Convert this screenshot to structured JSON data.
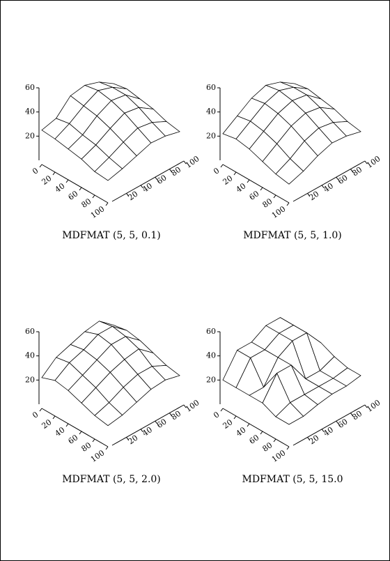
{
  "chart_data": [
    {
      "type": "surface",
      "title": "MDFMAT (5, 5, 0.1)",
      "x": [
        0,
        20,
        40,
        60,
        80,
        100
      ],
      "y": [
        0,
        20,
        40,
        60,
        80,
        100
      ],
      "z": [
        [
          25,
          28,
          40,
          42,
          38,
          30
        ],
        [
          24,
          30,
          38,
          44,
          40,
          32
        ],
        [
          22,
          27,
          36,
          42,
          40,
          30
        ],
        [
          20,
          25,
          32,
          38,
          36,
          28
        ],
        [
          16,
          21,
          27,
          32,
          30,
          24
        ],
        [
          15,
          18,
          22,
          26,
          25,
          22
        ]
      ],
      "xlim": [
        0,
        100
      ],
      "ylim": [
        0,
        100
      ],
      "zlim": [
        0,
        60
      ],
      "xticks": [
        0,
        20,
        40,
        60,
        80,
        100
      ],
      "yticks": [
        20,
        40,
        60,
        80,
        100
      ],
      "zticks": [
        20,
        40,
        60
      ]
    },
    {
      "type": "surface",
      "title": "MDFMAT (5, 5, 1.0)",
      "x": [
        0,
        20,
        40,
        60,
        80,
        100
      ],
      "y": [
        0,
        20,
        40,
        60,
        80,
        100
      ],
      "z": [
        [
          22,
          30,
          38,
          42,
          38,
          30
        ],
        [
          24,
          32,
          40,
          44,
          40,
          32
        ],
        [
          22,
          30,
          38,
          42,
          40,
          30
        ],
        [
          18,
          26,
          34,
          38,
          36,
          28
        ],
        [
          14,
          20,
          28,
          32,
          30,
          24
        ],
        [
          12,
          16,
          22,
          26,
          25,
          22
        ]
      ],
      "xlim": [
        0,
        100
      ],
      "ylim": [
        0,
        100
      ],
      "zlim": [
        0,
        60
      ],
      "xticks": [
        0,
        20,
        40,
        60,
        80,
        100
      ],
      "yticks": [
        20,
        40,
        60,
        80,
        100
      ],
      "zticks": [
        20,
        40,
        60
      ]
    },
    {
      "type": "surface",
      "title": "MDFMAT (5, 5, 2.0)",
      "x": [
        0,
        20,
        40,
        60,
        80,
        100
      ],
      "y": [
        0,
        20,
        40,
        60,
        80,
        100
      ],
      "z": [
        [
          22,
          32,
          36,
          40,
          42,
          32
        ],
        [
          26,
          34,
          38,
          44,
          44,
          34
        ],
        [
          24,
          30,
          36,
          42,
          42,
          32
        ],
        [
          20,
          26,
          32,
          36,
          38,
          28
        ],
        [
          16,
          20,
          26,
          30,
          30,
          24
        ],
        [
          14,
          16,
          20,
          24,
          25,
          22
        ]
      ],
      "xlim": [
        0,
        100
      ],
      "ylim": [
        0,
        100
      ],
      "zlim": [
        0,
        60
      ],
      "xticks": [
        0,
        20,
        40,
        60,
        80,
        100
      ],
      "yticks": [
        20,
        40,
        60,
        80,
        100
      ],
      "zticks": [
        20,
        40,
        60
      ]
    },
    {
      "type": "surface",
      "title": "MDFMAT (5, 5, 15.0",
      "x": [
        0,
        20,
        40,
        60,
        80,
        100
      ],
      "y": [
        0,
        20,
        40,
        60,
        80,
        100
      ],
      "z": [
        [
          20,
          38,
          38,
          45,
          45,
          30
        ],
        [
          20,
          38,
          38,
          45,
          45,
          30
        ],
        [
          20,
          20,
          38,
          45,
          45,
          30
        ],
        [
          20,
          38,
          38,
          20,
          20,
          25
        ],
        [
          15,
          20,
          20,
          20,
          20,
          22
        ],
        [
          15,
          15,
          18,
          20,
          20,
          22
        ]
      ],
      "xlim": [
        0,
        100
      ],
      "ylim": [
        0,
        100
      ],
      "zlim": [
        0,
        60
      ],
      "xticks": [
        0,
        20,
        40,
        60,
        80,
        100
      ],
      "yticks": [
        20,
        40,
        60,
        80,
        100
      ],
      "zticks": [
        20,
        40,
        60
      ]
    }
  ]
}
